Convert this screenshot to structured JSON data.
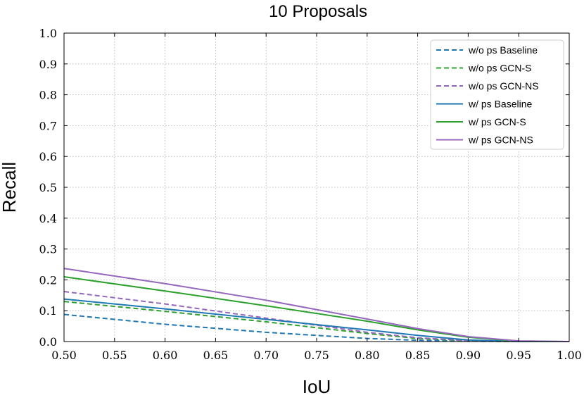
{
  "chart_data": {
    "type": "line",
    "title": "10 Proposals",
    "xlabel": "IoU",
    "ylabel": "Recall",
    "xlim": [
      0.5,
      1.0
    ],
    "ylim": [
      0.0,
      1.0
    ],
    "grid": true,
    "legend_position": "top-right",
    "x_ticks": [
      "0.50",
      "0.55",
      "0.60",
      "0.65",
      "0.70",
      "0.75",
      "0.80",
      "0.85",
      "0.90",
      "0.95",
      "1.00"
    ],
    "y_ticks": [
      "0.0",
      "0.1",
      "0.2",
      "0.3",
      "0.4",
      "0.5",
      "0.6",
      "0.7",
      "0.8",
      "0.9",
      "1.0"
    ],
    "x": [
      0.5,
      0.6,
      0.7,
      0.8,
      0.85,
      0.9,
      0.95,
      1.0
    ],
    "series": [
      {
        "name": "w/o ps Baseline",
        "color": "#1f77b4",
        "style": "dashed",
        "values": [
          0.088,
          0.056,
          0.03,
          0.01,
          0.004,
          0.001,
          0.0,
          0.0
        ]
      },
      {
        "name": "w/o ps GCN-S",
        "color": "#2ca02c",
        "style": "dashed",
        "values": [
          0.13,
          0.098,
          0.064,
          0.026,
          0.01,
          0.002,
          0.0,
          0.0
        ]
      },
      {
        "name": "w/o ps GCN-NS",
        "color": "#9467bd",
        "style": "dashed",
        "values": [
          0.162,
          0.122,
          0.076,
          0.03,
          0.012,
          0.003,
          0.0,
          0.0
        ]
      },
      {
        "name": "w/ ps Baseline",
        "color": "#1f77b4",
        "style": "solid",
        "values": [
          0.138,
          0.106,
          0.072,
          0.038,
          0.02,
          0.005,
          0.0,
          0.0
        ]
      },
      {
        "name": "w/ ps GCN-S",
        "color": "#2ca02c",
        "style": "solid",
        "values": [
          0.21,
          0.164,
          0.116,
          0.066,
          0.038,
          0.014,
          0.001,
          0.0
        ]
      },
      {
        "name": "w/ ps GCN-NS",
        "color": "#9467bd",
        "style": "solid",
        "values": [
          0.237,
          0.188,
          0.134,
          0.073,
          0.042,
          0.016,
          0.002,
          0.0
        ]
      }
    ]
  }
}
